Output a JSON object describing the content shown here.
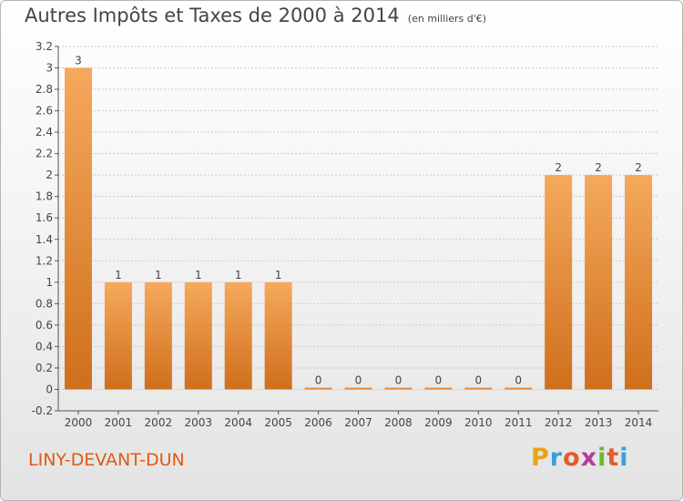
{
  "header": {
    "title": "Autres Impôts et Taxes de 2000 à 2014",
    "unit": "(en milliers d'€)"
  },
  "footer": {
    "commune": "LINY-DEVANT-DUN",
    "brand": "Proxiti",
    "brand_colors": [
      "#e8a21b",
      "#3aa1d8",
      "#e45a28",
      "#b43c9c",
      "#6cb82c",
      "#e45a28",
      "#3aa1d8"
    ]
  },
  "colors": {
    "bar_light": "#f5a95c",
    "bar_dark": "#cf6f1c",
    "grid": "#c9c9c9",
    "text": "#444444",
    "commune": "#e05a10"
  },
  "chart_data": {
    "type": "bar",
    "title": "Autres Impôts et Taxes de 2000 à 2014",
    "subtitle": "(en milliers d'€)",
    "xlabel": "",
    "ylabel": "",
    "categories": [
      "2000",
      "2001",
      "2002",
      "2003",
      "2004",
      "2005",
      "2006",
      "2007",
      "2008",
      "2009",
      "2010",
      "2011",
      "2012",
      "2013",
      "2014"
    ],
    "values": [
      3,
      1,
      1,
      1,
      1,
      1,
      0,
      0,
      0,
      0,
      0,
      0,
      2,
      2,
      2
    ],
    "data_labels": [
      "3",
      "1",
      "1",
      "1",
      "1",
      "1",
      "0",
      "0",
      "0",
      "0",
      "0",
      "0",
      "2",
      "2",
      "2"
    ],
    "y_ticks": [
      "-0.2",
      "0",
      "0.2",
      "0.4",
      "0.6",
      "0.8",
      "1",
      "1.2",
      "1.4",
      "1.6",
      "1.8",
      "2",
      "2.2",
      "2.4",
      "2.6",
      "2.8",
      "3",
      "3.2"
    ],
    "ylim": [
      -0.2,
      3.2
    ],
    "grid": true,
    "legend": "none"
  }
}
